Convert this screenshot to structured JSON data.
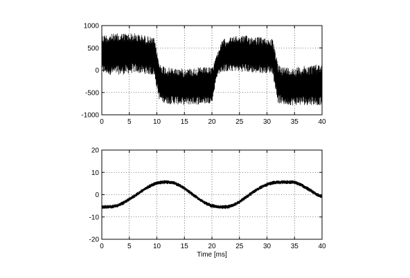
{
  "chart_data": [
    {
      "type": "line",
      "title": "",
      "xlabel": "",
      "ylabel": "",
      "xlim": [
        0,
        40
      ],
      "ylim": [
        -1000,
        1000
      ],
      "xticks": [
        0,
        5,
        10,
        15,
        20,
        25,
        30,
        35,
        40
      ],
      "yticks": [
        -1000,
        -500,
        0,
        500,
        1000
      ],
      "grid": true,
      "series": [
        {
          "color": "#000000",
          "envelope": {
            "x": [
              0,
              2,
              4,
              6,
              8,
              9.5,
              10.5,
              12,
              15,
              18,
              20,
              21,
              22,
              24,
              26,
              28,
              31,
              32,
              33,
              35,
              38,
              40
            ],
            "upper": [
              800,
              820,
              840,
              830,
              780,
              720,
              150,
              60,
              40,
              70,
              60,
              400,
              700,
              760,
              780,
              760,
              700,
              150,
              80,
              60,
              120,
              150
            ],
            "lower": [
              -80,
              -110,
              -100,
              -60,
              -90,
              -120,
              -700,
              -760,
              -780,
              -770,
              -740,
              -100,
              -40,
              -20,
              -40,
              -70,
              -60,
              -740,
              -780,
              -790,
              -780,
              -790
            ]
          }
        }
      ]
    },
    {
      "type": "line",
      "title": "",
      "xlabel": "Time [ms]",
      "ylabel": "",
      "xlim": [
        0,
        40
      ],
      "ylim": [
        -20,
        20
      ],
      "xticks": [
        0,
        5,
        10,
        15,
        20,
        25,
        30,
        35,
        40
      ],
      "yticks": [
        -20,
        -10,
        0,
        10,
        20
      ],
      "grid": true,
      "series": [
        {
          "color": "#000000",
          "x": [
            0,
            1,
            2,
            3,
            4,
            5,
            6,
            7,
            8,
            9,
            10,
            11,
            12,
            13,
            14,
            15,
            16,
            17,
            18,
            19,
            20,
            21,
            22,
            23,
            24,
            25,
            26,
            27,
            28,
            29,
            30,
            31,
            32,
            33,
            34,
            35,
            36,
            37,
            38,
            39,
            40
          ],
          "y": [
            -5.5,
            -5.5,
            -5.3,
            -4.8,
            -3.5,
            -2.0,
            -0.5,
            1.2,
            2.8,
            4.2,
            5.2,
            5.6,
            5.6,
            5.4,
            4.3,
            2.8,
            1.0,
            -0.8,
            -2.5,
            -4.0,
            -5.0,
            -5.5,
            -5.6,
            -5.4,
            -4.6,
            -3.2,
            -1.5,
            0.3,
            2.0,
            3.5,
            4.6,
            5.3,
            5.6,
            5.6,
            5.6,
            5.5,
            4.6,
            3.3,
            1.8,
            0.2,
            -1.0
          ],
          "ripple": 0.9
        }
      ]
    }
  ]
}
